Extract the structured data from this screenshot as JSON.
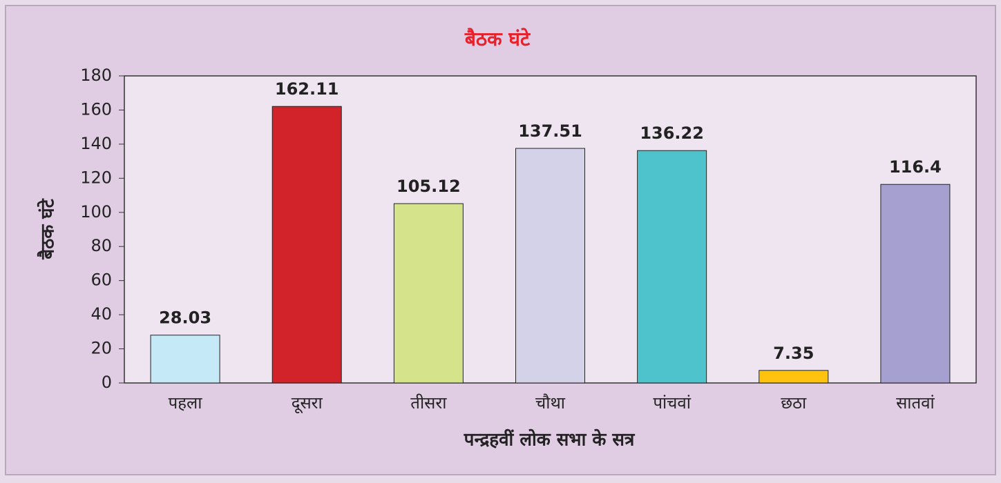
{
  "chart_data": {
    "type": "bar",
    "title": "बैठक घंटे",
    "x_label": "पन्द्रहवीं लोक सभा के सत्र",
    "y_label": "बैठक घंटे",
    "categories": [
      "पहला",
      "दूसरा",
      "तीसरा",
      "चौथा",
      "पांचवां",
      "छठा",
      "सातवां"
    ],
    "values": [
      28.03,
      162.11,
      105.12,
      137.51,
      136.22,
      7.35,
      116.4
    ],
    "colors": [
      "#c6e9f7",
      "#d2232a",
      "#d5e48a",
      "#d4d2e8",
      "#4fc3cc",
      "#ffc20e",
      "#a6a0d0"
    ],
    "ylim": [
      0,
      180
    ],
    "yticks": [
      0,
      20,
      40,
      60,
      80,
      100,
      120,
      140,
      160,
      180
    ],
    "grid": false
  }
}
